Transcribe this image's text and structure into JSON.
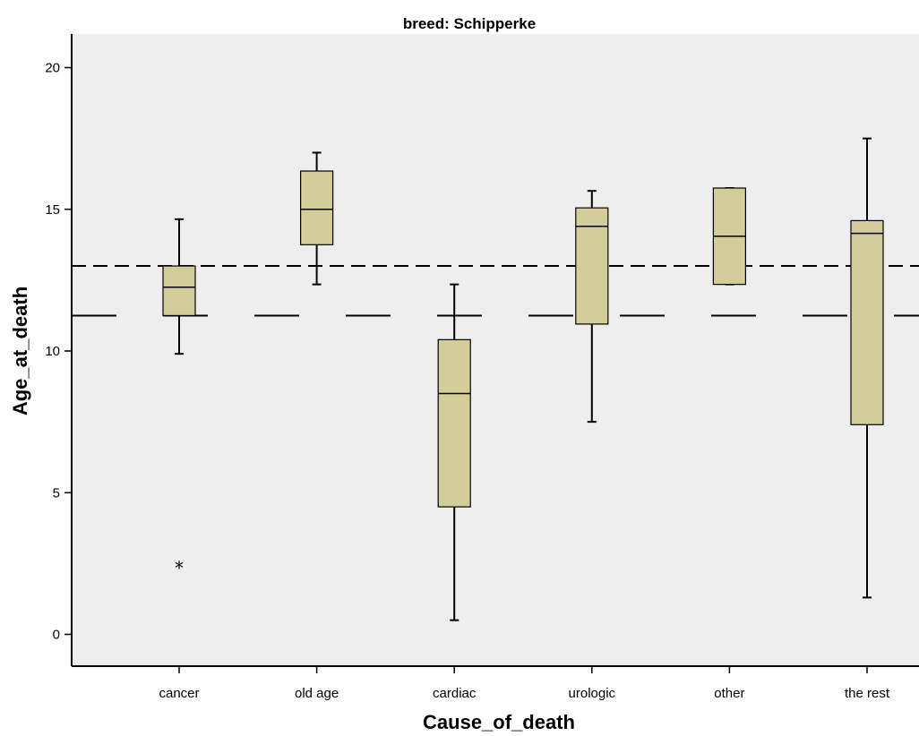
{
  "chart_data": {
    "type": "boxplot",
    "title": "breed: Schipperke",
    "xlabel": "Cause_of_death",
    "ylabel": "Age_at_death",
    "ylim": [
      -1.1,
      21.1
    ],
    "yticks": [
      0,
      5,
      10,
      15,
      20
    ],
    "grid": false,
    "colors": {
      "plot_bg": "#eeeeee",
      "box_fill": "#d3ce99",
      "stroke": "#000000"
    },
    "categories": [
      "cancer",
      "old age",
      "cardiac",
      "urologic",
      "other",
      "the rest"
    ],
    "boxes": [
      {
        "category": "cancer",
        "min": 9.9,
        "q1": 11.25,
        "median": 12.25,
        "q3": 13.0,
        "max": 14.65,
        "outliers": [
          2.4
        ]
      },
      {
        "category": "old age",
        "min": 12.35,
        "q1": 13.75,
        "median": 15.0,
        "q3": 16.35,
        "max": 17.0,
        "outliers": []
      },
      {
        "category": "cardiac",
        "min": 0.5,
        "q1": 4.5,
        "median": 8.5,
        "q3": 10.4,
        "max": 12.35,
        "outliers": []
      },
      {
        "category": "urologic",
        "min": 7.5,
        "q1": 10.95,
        "median": 14.4,
        "q3": 15.05,
        "max": 15.65,
        "outliers": []
      },
      {
        "category": "other",
        "min": 12.35,
        "q1": 12.35,
        "median": 14.05,
        "q3": 15.75,
        "max": 15.75,
        "outliers": []
      },
      {
        "category": "the rest",
        "min": 1.3,
        "q1": 7.4,
        "median": 14.15,
        "q3": 14.6,
        "max": 17.5,
        "outliers": []
      }
    ],
    "reference_lines": [
      {
        "y": 13.0,
        "style": "short-dash"
      },
      {
        "y": 11.25,
        "style": "long-dash"
      }
    ]
  }
}
